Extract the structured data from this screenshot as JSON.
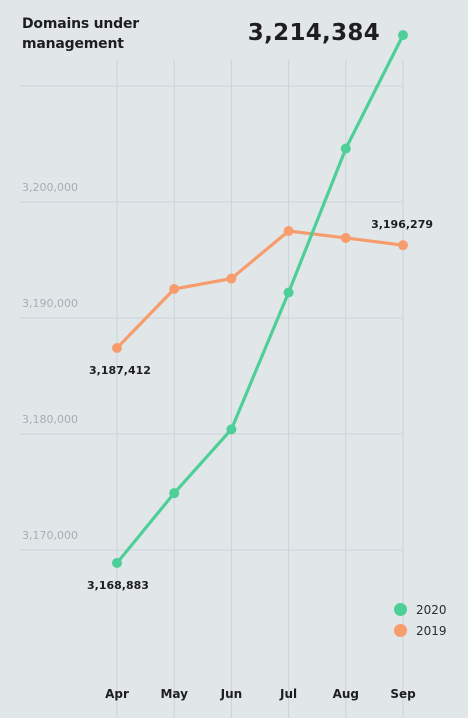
{
  "chart_data": {
    "type": "line",
    "title": "Domains under management",
    "headline_value": "3,214,384",
    "categories": [
      "Apr",
      "May",
      "Jun",
      "Jul",
      "Aug",
      "Sep"
    ],
    "series": [
      {
        "name": "2020",
        "color": "#4ecf98",
        "values": [
          3168883,
          3174900,
          3180400,
          3192200,
          3204600,
          3214384
        ],
        "labels": [
          {
            "index": 0,
            "text": "3,168,883"
          },
          {
            "index": 5,
            "text": "3,214,384"
          }
        ]
      },
      {
        "name": "2019",
        "color": "#f79c6c",
        "values": [
          3187412,
          3192500,
          3193400,
          3197500,
          3196900,
          3196279
        ],
        "labels": [
          {
            "index": 0,
            "text": "3,187,412"
          },
          {
            "index": 5,
            "text": "3,196,279"
          }
        ]
      }
    ],
    "y_ticks": [
      {
        "value": 3170000,
        "label": "3,170,000"
      },
      {
        "value": 3180000,
        "label": "3,180,000"
      },
      {
        "value": 3190000,
        "label": "3,190,000"
      },
      {
        "value": 3200000,
        "label": "3,200,000"
      },
      {
        "value": 3210000,
        "label": ""
      }
    ],
    "ylim": [
      3160000,
      3214384
    ],
    "grid": true,
    "legend_position": "bottom-right"
  }
}
